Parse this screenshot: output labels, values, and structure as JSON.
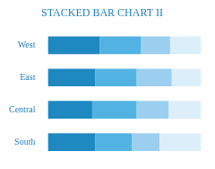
{
  "chart_data": {
    "type": "bar",
    "title": "STACKED BAR CHART II",
    "orientation": "horizontal",
    "stacked": true,
    "grid": false,
    "tick_labels": "y",
    "categories": [
      "West",
      "East",
      "Central",
      "South"
    ],
    "series": [
      {
        "color": "#1f88c0",
        "values": [
          34,
          31,
          29,
          31
        ]
      },
      {
        "color": "#52b3e3",
        "values": [
          27,
          27,
          29,
          24
        ]
      },
      {
        "color": "#9ccfef",
        "values": [
          19,
          23,
          21,
          18
        ]
      },
      {
        "color": "#dceef9",
        "values": [
          20,
          19,
          21,
          27
        ]
      }
    ],
    "xlim": [
      0,
      100
    ]
  }
}
